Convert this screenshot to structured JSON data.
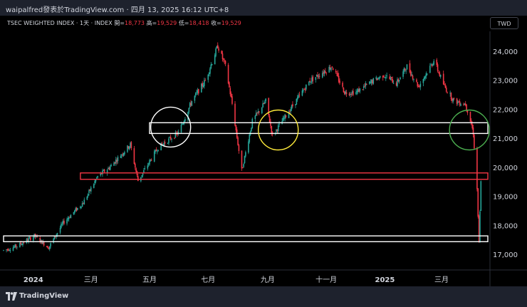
{
  "header": {
    "author_line": "waipalfred發表於TradingView.com · 四月 13, 2025 16:12 UTC+8"
  },
  "info": {
    "symbol": "TSEC WEIGHTED INDEX · 1天 · INDEX",
    "open_label": "開=",
    "open": "18,773",
    "high_label": "高=",
    "high": "19,529",
    "low_label": "低=",
    "low": "18,418",
    "close_label": "收=",
    "close": "19,529"
  },
  "currency": "TWD",
  "footer": {
    "brand": "TradingView"
  },
  "colors": {
    "up": "#26a69a",
    "down": "#f23645",
    "bg": "#000000",
    "panel": "#1e222d",
    "zone_white": "#ffffff",
    "zone_red": "#f23645",
    "circle_white": "#ffffff",
    "circle_yellow": "#ffeb3b",
    "circle_green": "#4caf50"
  },
  "chart_data": {
    "type": "candlestick",
    "title": "TSEC WEIGHTED INDEX",
    "ylim": [
      16500,
      24700
    ],
    "y_ticks": [
      "24,000",
      "23,000",
      "22,000",
      "21,000",
      "20,000",
      "19,000",
      "18,000",
      "17,000"
    ],
    "x_ticks": [
      "2024",
      "三月",
      "五月",
      "七月",
      "九月",
      "十一月",
      "2025",
      "三月"
    ],
    "x_ticks_bold": [
      true,
      false,
      false,
      false,
      false,
      false,
      true,
      false
    ],
    "x_start": "2023-12-01",
    "x_end": "2025-04-13",
    "anchors": [
      [
        "2023-12-01",
        17150
      ],
      [
        "2023-12-15",
        17300
      ],
      [
        "2024-01-02",
        17650
      ],
      [
        "2024-01-17",
        17250
      ],
      [
        "2024-02-01",
        18100
      ],
      [
        "2024-02-22",
        18800
      ],
      [
        "2024-03-08",
        19700
      ],
      [
        "2024-03-20",
        20000
      ],
      [
        "2024-04-11",
        20800
      ],
      [
        "2024-04-19",
        19550
      ],
      [
        "2024-05-10",
        20700
      ],
      [
        "2024-05-31",
        21200
      ],
      [
        "2024-06-14",
        22300
      ],
      [
        "2024-06-28",
        23000
      ],
      [
        "2024-07-11",
        24200
      ],
      [
        "2024-07-19",
        23500
      ],
      [
        "2024-07-26",
        22200
      ],
      [
        "2024-08-05",
        19900
      ],
      [
        "2024-08-16",
        21600
      ],
      [
        "2024-08-30",
        22300
      ],
      [
        "2024-09-06",
        21100
      ],
      [
        "2024-09-20",
        21800
      ],
      [
        "2024-10-15",
        23000
      ],
      [
        "2024-11-07",
        23500
      ],
      [
        "2024-11-20",
        22600
      ],
      [
        "2024-12-02",
        22600
      ],
      [
        "2024-12-20",
        23000
      ],
      [
        "2024-12-31",
        23200
      ],
      [
        "2025-01-13",
        22900
      ],
      [
        "2025-01-24",
        23500
      ],
      [
        "2025-02-05",
        22800
      ],
      [
        "2025-02-21",
        23700
      ],
      [
        "2025-03-04",
        22800
      ],
      [
        "2025-03-14",
        22300
      ],
      [
        "2025-03-26",
        22200
      ],
      [
        "2025-04-01",
        21500
      ],
      [
        "2025-04-03",
        21200
      ],
      [
        "2025-04-07",
        19250
      ],
      [
        "2025-04-09",
        17400
      ],
      [
        "2025-04-11",
        19500
      ]
    ],
    "shapes": {
      "zones": [
        {
          "from": "2024-05-01",
          "to": "2025-04-13",
          "low": 21180,
          "high": 21550,
          "color": "#ffffff"
        },
        {
          "from": "2024-02-19",
          "to": "2025-04-13",
          "low": 19600,
          "high": 19820,
          "color": "#f23645"
        },
        {
          "from": "2023-12-01",
          "to": "2025-04-13",
          "low": 17450,
          "high": 17650,
          "color": "#ffffff"
        }
      ],
      "circles": [
        {
          "date": "2024-05-23",
          "value": 21400,
          "color": "#ffffff"
        },
        {
          "date": "2024-09-12",
          "value": 21300,
          "color": "#ffeb3b"
        },
        {
          "date": "2025-03-30",
          "value": 21300,
          "color": "#4caf50"
        }
      ]
    }
  }
}
